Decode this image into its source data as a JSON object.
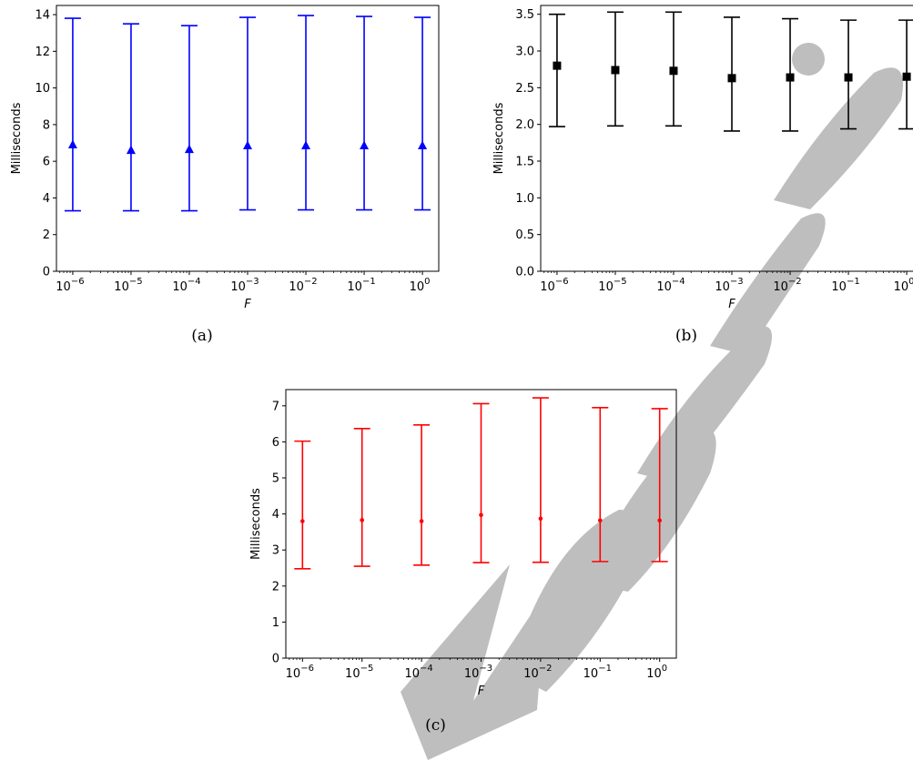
{
  "colors": {
    "panel_a": "#0000ff",
    "panel_b": "#000000",
    "panel_c": "#ff0000",
    "watermark": "#b3b3b3"
  },
  "watermark_text": "Manuscript",
  "chart_data": [
    {
      "type": "scatter",
      "caption": "(a)",
      "xlabel": "F",
      "ylabel": "Milliseconds",
      "x_scale": "log",
      "x": [
        1e-06,
        1e-05,
        0.0001,
        0.001,
        0.01,
        0.1,
        1
      ],
      "x_tick_labels": [
        {
          "base": "10",
          "exp": "−6"
        },
        {
          "base": "10",
          "exp": "−5"
        },
        {
          "base": "10",
          "exp": "−4"
        },
        {
          "base": "10",
          "exp": "−3"
        },
        {
          "base": "10",
          "exp": "−2"
        },
        {
          "base": "10",
          "exp": "−1"
        },
        {
          "base": "10",
          "exp": "0"
        }
      ],
      "y_ticks": [
        "0",
        "2",
        "4",
        "6",
        "8",
        "10",
        "12",
        "14"
      ],
      "ylim": [
        0,
        14.5
      ],
      "grid": false,
      "marker": "triangle",
      "color": "#0000ff",
      "series": [
        {
          "values": [
            6.9,
            6.6,
            6.65,
            6.85,
            6.85,
            6.85,
            6.85
          ],
          "err_low": [
            3.3,
            3.3,
            3.3,
            3.35,
            3.35,
            3.35,
            3.35
          ],
          "err_high": [
            13.8,
            13.5,
            13.4,
            13.85,
            13.95,
            13.9,
            13.85
          ]
        }
      ]
    },
    {
      "type": "scatter",
      "caption": "(b)",
      "xlabel": "F",
      "ylabel": "Milliseconds",
      "x_scale": "log",
      "x": [
        1e-06,
        1e-05,
        0.0001,
        0.001,
        0.01,
        0.1,
        1
      ],
      "x_tick_labels": [
        {
          "base": "10",
          "exp": "−6"
        },
        {
          "base": "10",
          "exp": "−5"
        },
        {
          "base": "10",
          "exp": "−4"
        },
        {
          "base": "10",
          "exp": "−3"
        },
        {
          "base": "10",
          "exp": "−2"
        },
        {
          "base": "10",
          "exp": "−1"
        },
        {
          "base": "10",
          "exp": "0"
        }
      ],
      "y_ticks": [
        "0.0",
        "0.5",
        "1.0",
        "1.5",
        "2.0",
        "2.5",
        "3.0",
        "3.5"
      ],
      "ylim": [
        0,
        3.62
      ],
      "grid": false,
      "marker": "square",
      "color": "#000000",
      "series": [
        {
          "values": [
            2.8,
            2.74,
            2.73,
            2.63,
            2.64,
            2.64,
            2.65
          ],
          "err_low": [
            1.97,
            1.98,
            1.98,
            1.91,
            1.91,
            1.94,
            1.94
          ],
          "err_high": [
            3.5,
            3.53,
            3.53,
            3.46,
            3.44,
            3.42,
            3.42
          ]
        }
      ]
    },
    {
      "type": "scatter",
      "caption": "(c)",
      "xlabel": "F",
      "ylabel": "Milliseconds",
      "x_scale": "log",
      "x": [
        1e-06,
        1e-05,
        0.0001,
        0.001,
        0.01,
        0.1,
        1
      ],
      "x_tick_labels": [
        {
          "base": "10",
          "exp": "−6"
        },
        {
          "base": "10",
          "exp": "−5"
        },
        {
          "base": "10",
          "exp": "−4"
        },
        {
          "base": "10",
          "exp": "−3"
        },
        {
          "base": "10",
          "exp": "−2"
        },
        {
          "base": "10",
          "exp": "−1"
        },
        {
          "base": "10",
          "exp": "0"
        }
      ],
      "y_ticks": [
        "0",
        "1",
        "2",
        "3",
        "4",
        "5",
        "6",
        "7"
      ],
      "ylim": [
        0,
        7.45
      ],
      "grid": false,
      "marker": "point",
      "color": "#ff0000",
      "series": [
        {
          "values": [
            3.8,
            3.83,
            3.8,
            3.97,
            3.87,
            3.82,
            3.82
          ],
          "err_low": [
            2.48,
            2.55,
            2.58,
            2.65,
            2.66,
            2.68,
            2.68
          ],
          "err_high": [
            6.02,
            6.37,
            6.47,
            7.06,
            7.22,
            6.95,
            6.92
          ]
        }
      ]
    }
  ]
}
